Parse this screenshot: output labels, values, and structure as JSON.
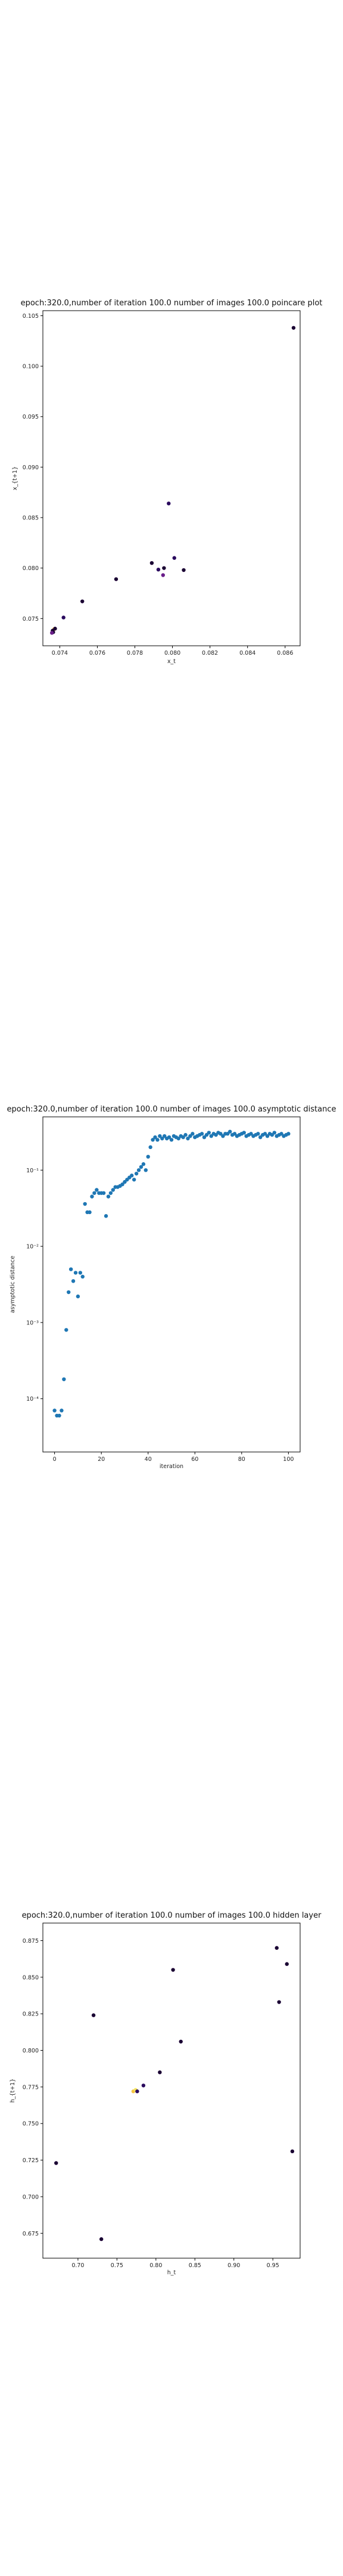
{
  "chart_data": [
    {
      "type": "scatter",
      "title": "epoch:320.0,number of iteration 100.0 number of images 100.0 poincare plot",
      "xlabel": "x_t",
      "ylabel": "x_{t+1}",
      "xlim": [
        0.0731,
        0.0868
      ],
      "ylim": [
        0.0723,
        0.1055
      ],
      "xticks": [
        0.074,
        0.076,
        0.078,
        0.08,
        0.082,
        0.084,
        0.086
      ],
      "xticklabels": [
        "0.074",
        "0.076",
        "0.078",
        "0.080",
        "0.082",
        "0.084",
        "0.086"
      ],
      "yticks": [
        0.075,
        0.08,
        0.085,
        0.09,
        0.095,
        0.1,
        0.105
      ],
      "yticklabels": [
        "0.075",
        "0.080",
        "0.085",
        "0.090",
        "0.095",
        "0.100",
        "0.105"
      ],
      "grid": false,
      "colors": [
        "#1a0033",
        "#2a0a5e",
        "#6a1e8a",
        "#f5c542"
      ],
      "points": [
        {
          "x": 0.07365,
          "y": 0.07365,
          "c": 0
        },
        {
          "x": 0.0737,
          "y": 0.07395,
          "c": 3
        },
        {
          "x": 0.07362,
          "y": 0.0738,
          "c": 0
        },
        {
          "x": 0.07375,
          "y": 0.074,
          "c": 0
        },
        {
          "x": 0.07358,
          "y": 0.07358,
          "c": 2
        },
        {
          "x": 0.0742,
          "y": 0.0751,
          "c": 1
        },
        {
          "x": 0.0752,
          "y": 0.0767,
          "c": 0
        },
        {
          "x": 0.077,
          "y": 0.0789,
          "c": 0
        },
        {
          "x": 0.0789,
          "y": 0.0805,
          "c": 0
        },
        {
          "x": 0.07925,
          "y": 0.07985,
          "c": 1
        },
        {
          "x": 0.0795,
          "y": 0.0793,
          "c": 2
        },
        {
          "x": 0.07955,
          "y": 0.08,
          "c": 0
        },
        {
          "x": 0.0798,
          "y": 0.0864,
          "c": 1
        },
        {
          "x": 0.0801,
          "y": 0.081,
          "c": 1
        },
        {
          "x": 0.0806,
          "y": 0.0798,
          "c": 0
        },
        {
          "x": 0.08645,
          "y": 0.1038,
          "c": 0
        }
      ]
    },
    {
      "type": "scatter",
      "title": "epoch:320.0,number of iteration 100.0  number of images 100.0 asymptotic distance",
      "xlabel": "iteration",
      "ylabel": "asymptotic distance",
      "yscale": "log",
      "xlim": [
        -5,
        105
      ],
      "ylim": [
        2e-05,
        0.5
      ],
      "xticks": [
        0,
        20,
        40,
        60,
        80,
        100
      ],
      "xticklabels": [
        "0",
        "20",
        "40",
        "60",
        "80",
        "100"
      ],
      "yticks": [
        0.0001,
        0.001,
        0.01,
        0.1
      ],
      "yticklabels": [
        "10⁻⁴",
        "10⁻³",
        "10⁻²",
        "10⁻¹"
      ],
      "grid": false,
      "color": "#1f77b4",
      "x": [
        0,
        1,
        2,
        3,
        4,
        5,
        6,
        7,
        8,
        9,
        10,
        11,
        12,
        13,
        14,
        15,
        16,
        17,
        18,
        19,
        20,
        21,
        22,
        23,
        24,
        25,
        26,
        27,
        28,
        29,
        30,
        31,
        32,
        33,
        34,
        35,
        36,
        37,
        38,
        39,
        40,
        41,
        42,
        43,
        44,
        45,
        46,
        47,
        48,
        49,
        50,
        51,
        52,
        53,
        54,
        55,
        56,
        57,
        58,
        59,
        60,
        61,
        62,
        63,
        64,
        65,
        66,
        67,
        68,
        69,
        70,
        71,
        72,
        73,
        74,
        75,
        76,
        77,
        78,
        79,
        80,
        81,
        82,
        83,
        84,
        85,
        86,
        87,
        88,
        89,
        90,
        91,
        92,
        93,
        94,
        95,
        96,
        97,
        98,
        99,
        100
      ],
      "y": [
        7e-05,
        6e-05,
        6e-05,
        7e-05,
        0.00018,
        0.0008,
        0.0025,
        0.005,
        0.0035,
        0.0045,
        0.0022,
        0.0045,
        0.004,
        0.036,
        0.028,
        0.028,
        0.045,
        0.05,
        0.055,
        0.05,
        0.05,
        0.05,
        0.025,
        0.045,
        0.05,
        0.055,
        0.06,
        0.06,
        0.062,
        0.065,
        0.07,
        0.075,
        0.08,
        0.085,
        0.075,
        0.09,
        0.1,
        0.11,
        0.12,
        0.1,
        0.15,
        0.2,
        0.25,
        0.27,
        0.25,
        0.28,
        0.26,
        0.28,
        0.26,
        0.27,
        0.25,
        0.28,
        0.27,
        0.26,
        0.28,
        0.27,
        0.29,
        0.26,
        0.28,
        0.3,
        0.27,
        0.28,
        0.29,
        0.3,
        0.27,
        0.29,
        0.31,
        0.28,
        0.3,
        0.29,
        0.31,
        0.3,
        0.28,
        0.3,
        0.3,
        0.32,
        0.29,
        0.3,
        0.28,
        0.29,
        0.3,
        0.31,
        0.28,
        0.29,
        0.3,
        0.28,
        0.29,
        0.3,
        0.27,
        0.29,
        0.3,
        0.28,
        0.3,
        0.29,
        0.31,
        0.28,
        0.29,
        0.3,
        0.28,
        0.29,
        0.3
      ]
    },
    {
      "type": "scatter",
      "title": "epoch:320.0,number of iteration 100.0  number of images 100.0 hidden layer",
      "xlabel": "h_t",
      "ylabel": "h_{t+1}",
      "xlim": [
        0.655,
        0.985
      ],
      "ylim": [
        0.658,
        0.887
      ],
      "xticks": [
        0.7,
        0.75,
        0.8,
        0.85,
        0.9,
        0.95
      ],
      "xticklabels": [
        "0.70",
        "0.75",
        "0.80",
        "0.85",
        "0.90",
        "0.95"
      ],
      "yticks": [
        0.675,
        0.7,
        0.725,
        0.75,
        0.775,
        0.8,
        0.825,
        0.85,
        0.875
      ],
      "yticklabels": [
        "0.675",
        "0.700",
        "0.725",
        "0.750",
        "0.775",
        "0.800",
        "0.825",
        "0.850",
        "0.875"
      ],
      "grid": false,
      "colors": [
        "#1a0033",
        "#2a0a5e",
        "#f5c542",
        "#f5e663"
      ],
      "points": [
        {
          "x": 0.672,
          "y": 0.723,
          "c": 0
        },
        {
          "x": 0.72,
          "y": 0.824,
          "c": 0
        },
        {
          "x": 0.73,
          "y": 0.671,
          "c": 0
        },
        {
          "x": 0.771,
          "y": 0.772,
          "c": 2
        },
        {
          "x": 0.774,
          "y": 0.773,
          "c": 3
        },
        {
          "x": 0.776,
          "y": 0.772,
          "c": 1
        },
        {
          "x": 0.784,
          "y": 0.776,
          "c": 1
        },
        {
          "x": 0.805,
          "y": 0.785,
          "c": 0
        },
        {
          "x": 0.822,
          "y": 0.855,
          "c": 0
        },
        {
          "x": 0.832,
          "y": 0.806,
          "c": 0
        },
        {
          "x": 0.955,
          "y": 0.87,
          "c": 0
        },
        {
          "x": 0.958,
          "y": 0.833,
          "c": 0
        },
        {
          "x": 0.968,
          "y": 0.859,
          "c": 0
        },
        {
          "x": 0.975,
          "y": 0.731,
          "c": 0
        }
      ]
    }
  ]
}
